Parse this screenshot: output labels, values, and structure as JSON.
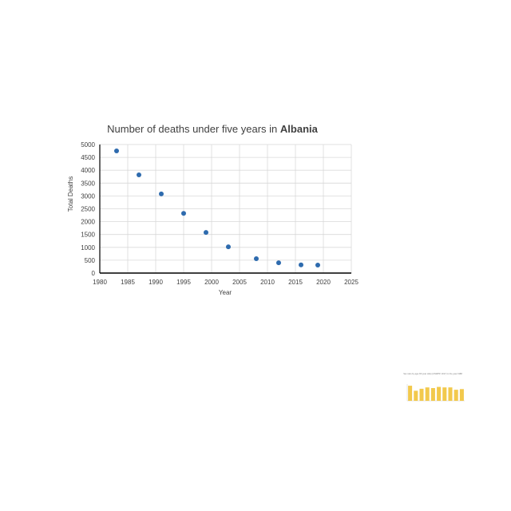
{
  "chart_data": [
    {
      "type": "scatter",
      "title": "Number of deaths under five years in ",
      "title_bold": "Albania",
      "xlabel": "Year",
      "ylabel": "Total Deaths",
      "xlim": [
        1980,
        2025
      ],
      "ylim": [
        0,
        5000
      ],
      "xticks": [
        "1980",
        "1985",
        "1990",
        "1995",
        "2000",
        "2005",
        "2010",
        "2015",
        "2020",
        "2025"
      ],
      "yticks": [
        "0",
        "500",
        "1000",
        "1500",
        "2000",
        "2500",
        "3000",
        "3500",
        "4000",
        "4500",
        "5000"
      ],
      "grid": true,
      "marker_color": "#2E6BAE",
      "series": [
        {
          "points": [
            {
              "x": 1983,
              "y": 4750
            },
            {
              "x": 1987,
              "y": 3820
            },
            {
              "x": 1991,
              "y": 3080
            },
            {
              "x": 1995,
              "y": 2320
            },
            {
              "x": 1999,
              "y": 1580
            },
            {
              "x": 2003,
              "y": 1020
            },
            {
              "x": 2008,
              "y": 560
            },
            {
              "x": 2012,
              "y": 400
            },
            {
              "x": 2016,
              "y": 320
            },
            {
              "x": 2019,
              "y": 310
            }
          ]
        }
      ]
    },
    {
      "type": "bar",
      "title": "Sex ratio by age (50 year olds) (UNWPP, 2017) in the year 1988",
      "bar_color": "#F2C94C",
      "values": [
        0.9,
        0.6,
        0.72,
        0.8,
        0.76,
        0.83,
        0.8,
        0.8,
        0.66,
        0.7
      ],
      "ylim": [
        0,
        1
      ]
    }
  ]
}
